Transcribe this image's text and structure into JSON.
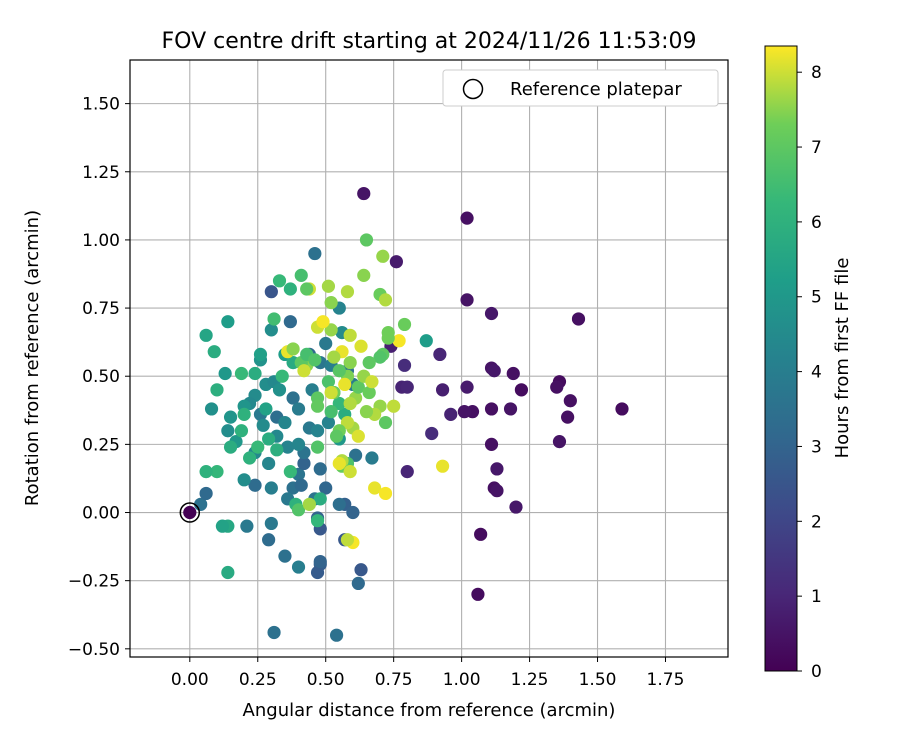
{
  "chart_data": {
    "type": "scatter",
    "title": "FOV centre drift starting at 2024/11/26 11:53:09",
    "xlabel": "Angular distance from reference (arcmin)",
    "ylabel": "Rotation from reference (arcmin)",
    "xlim": [
      -0.22,
      1.98
    ],
    "ylim": [
      -0.53,
      1.66
    ],
    "xticks": [
      "0.00",
      "0.25",
      "0.50",
      "0.75",
      "1.00",
      "1.25",
      "1.50",
      "1.75"
    ],
    "yticks": [
      "−0.50",
      "−0.25",
      "0.00",
      "0.25",
      "0.50",
      "0.75",
      "1.00",
      "1.25",
      "1.50"
    ],
    "grid": true,
    "legend": {
      "position": "top-right",
      "entries": [
        "Reference platepar"
      ]
    },
    "reference_point": {
      "x": 0.0,
      "y": 0.0
    },
    "colorbar": {
      "label": "Hours from first FF file",
      "colormap": "viridis",
      "range": [
        0,
        8.35
      ],
      "ticks": [
        "0",
        "1",
        "2",
        "3",
        "4",
        "5",
        "6",
        "7",
        "8"
      ]
    },
    "points": [
      [
        0.0,
        0.0,
        0.0
      ],
      [
        0.64,
        1.17,
        0.5
      ],
      [
        1.02,
        1.08,
        0.4
      ],
      [
        0.76,
        0.92,
        0.7
      ],
      [
        1.02,
        0.78,
        0.5
      ],
      [
        1.11,
        0.73,
        0.6
      ],
      [
        1.43,
        0.71,
        0.4
      ],
      [
        0.74,
        0.61,
        0.8
      ],
      [
        0.92,
        0.58,
        1.0
      ],
      [
        0.79,
        0.54,
        1.2
      ],
      [
        1.11,
        0.53,
        0.5
      ],
      [
        1.12,
        0.52,
        0.6
      ],
      [
        1.19,
        0.51,
        0.4
      ],
      [
        1.36,
        0.48,
        0.3
      ],
      [
        1.35,
        0.46,
        0.4
      ],
      [
        1.22,
        0.45,
        0.3
      ],
      [
        1.02,
        0.46,
        0.7
      ],
      [
        0.93,
        0.45,
        0.8
      ],
      [
        0.78,
        0.46,
        0.9
      ],
      [
        0.8,
        0.46,
        1.0
      ],
      [
        1.4,
        0.41,
        0.4
      ],
      [
        1.59,
        0.38,
        0.3
      ],
      [
        1.11,
        0.38,
        0.4
      ],
      [
        1.18,
        0.38,
        0.5
      ],
      [
        1.04,
        0.37,
        0.4
      ],
      [
        1.01,
        0.37,
        0.5
      ],
      [
        0.96,
        0.36,
        0.9
      ],
      [
        1.39,
        0.35,
        0.4
      ],
      [
        0.89,
        0.29,
        1.2
      ],
      [
        1.11,
        0.25,
        0.4
      ],
      [
        1.36,
        0.26,
        0.5
      ],
      [
        1.13,
        0.16,
        0.6
      ],
      [
        0.8,
        0.15,
        1.0
      ],
      [
        1.12,
        0.09,
        0.4
      ],
      [
        1.13,
        0.08,
        0.5
      ],
      [
        1.2,
        0.02,
        0.6
      ],
      [
        1.07,
        -0.08,
        0.3
      ],
      [
        1.06,
        -0.3,
        0.3
      ],
      [
        0.46,
        0.95,
        3.5
      ],
      [
        0.3,
        0.81,
        2.5
      ],
      [
        0.37,
        0.7,
        3.2
      ],
      [
        0.55,
        0.75,
        4.2
      ],
      [
        0.56,
        0.66,
        4.5
      ],
      [
        0.5,
        0.62,
        3.8
      ],
      [
        0.44,
        0.58,
        3.2
      ],
      [
        0.48,
        0.55,
        3.7
      ],
      [
        0.52,
        0.54,
        4.0
      ],
      [
        0.58,
        0.52,
        3.6
      ],
      [
        0.6,
        0.47,
        3.9
      ],
      [
        0.53,
        0.44,
        4.2
      ],
      [
        0.45,
        0.45,
        4.0
      ],
      [
        0.38,
        0.42,
        3.5
      ],
      [
        0.4,
        0.38,
        3.9
      ],
      [
        0.32,
        0.35,
        3.4
      ],
      [
        0.26,
        0.36,
        3.8
      ],
      [
        0.44,
        0.31,
        3.8
      ],
      [
        0.47,
        0.3,
        4.2
      ],
      [
        0.51,
        0.33,
        4.2
      ],
      [
        0.61,
        0.21,
        3.5
      ],
      [
        0.67,
        0.2,
        3.9
      ],
      [
        0.48,
        0.16,
        3.3
      ],
      [
        0.4,
        0.14,
        3.6
      ],
      [
        0.42,
        0.18,
        3.0
      ],
      [
        0.5,
        0.09,
        3.1
      ],
      [
        0.46,
        0.05,
        3.6
      ],
      [
        0.38,
        0.09,
        3.5
      ],
      [
        0.3,
        0.09,
        4.0
      ],
      [
        0.24,
        0.1,
        3.3
      ],
      [
        0.2,
        0.12,
        4.6
      ],
      [
        0.36,
        0.05,
        3.8
      ],
      [
        0.41,
        0.1,
        3.2
      ],
      [
        0.57,
        0.03,
        2.9
      ],
      [
        0.55,
        0.03,
        3.4
      ],
      [
        0.6,
        0.0,
        3.0
      ],
      [
        0.48,
        -0.06,
        2.6
      ],
      [
        0.47,
        -0.02,
        3.0
      ],
      [
        0.57,
        -0.1,
        2.6
      ],
      [
        0.63,
        -0.21,
        2.6
      ],
      [
        0.62,
        -0.26,
        3.2
      ],
      [
        0.48,
        -0.19,
        2.8
      ],
      [
        0.47,
        -0.22,
        2.7
      ],
      [
        0.48,
        -0.18,
        3.0
      ],
      [
        0.35,
        -0.16,
        3.5
      ],
      [
        0.3,
        -0.04,
        3.8
      ],
      [
        0.29,
        -0.1,
        3.3
      ],
      [
        0.4,
        -0.2,
        4.0
      ],
      [
        0.31,
        -0.44,
        3.5
      ],
      [
        0.54,
        -0.45,
        3.5
      ],
      [
        0.21,
        -0.05,
        3.8
      ],
      [
        0.04,
        0.03,
        3.5
      ],
      [
        0.06,
        0.07,
        3.2
      ],
      [
        0.29,
        0.18,
        4.3
      ],
      [
        0.24,
        0.22,
        4.4
      ],
      [
        0.36,
        0.24,
        4.2
      ],
      [
        0.42,
        0.22,
        3.6
      ],
      [
        0.4,
        0.25,
        4.3
      ],
      [
        0.32,
        0.28,
        4.4
      ],
      [
        0.27,
        0.32,
        4.5
      ],
      [
        0.35,
        0.33,
        4.3
      ],
      [
        0.24,
        0.43,
        4.5
      ],
      [
        0.28,
        0.47,
        4.6
      ],
      [
        0.31,
        0.48,
        4.4
      ],
      [
        0.26,
        0.56,
        4.8
      ],
      [
        0.3,
        0.67,
        4.6
      ],
      [
        0.33,
        0.45,
        4.7
      ],
      [
        0.22,
        0.4,
        4.4
      ],
      [
        0.2,
        0.39,
        4.9
      ],
      [
        0.15,
        0.35,
        4.9
      ],
      [
        0.14,
        0.3,
        4.6
      ],
      [
        0.17,
        0.26,
        5.0
      ],
      [
        0.08,
        0.38,
        4.7
      ],
      [
        0.13,
        0.51,
        5.0
      ],
      [
        0.14,
        0.7,
        5.2
      ],
      [
        0.06,
        0.65,
        5.5
      ],
      [
        0.09,
        0.59,
        5.8
      ],
      [
        0.1,
        0.45,
        5.9
      ],
      [
        0.19,
        0.51,
        6.3
      ],
      [
        0.2,
        0.36,
        6.0
      ],
      [
        0.24,
        0.51,
        5.8
      ],
      [
        0.26,
        0.58,
        5.3
      ],
      [
        0.31,
        0.71,
        6.5
      ],
      [
        0.33,
        0.85,
        6.3
      ],
      [
        0.37,
        0.82,
        6.0
      ],
      [
        0.41,
        0.87,
        6.6
      ],
      [
        0.35,
        0.58,
        5.2
      ],
      [
        0.38,
        0.55,
        5.7
      ],
      [
        0.34,
        0.5,
        6.3
      ],
      [
        0.28,
        0.38,
        5.4
      ],
      [
        0.29,
        0.27,
        5.8
      ],
      [
        0.32,
        0.23,
        5.9
      ],
      [
        0.25,
        0.24,
        6.3
      ],
      [
        0.22,
        0.2,
        6.0
      ],
      [
        0.15,
        0.24,
        5.8
      ],
      [
        0.19,
        0.3,
        6.0
      ],
      [
        0.14,
        -0.05,
        5.6
      ],
      [
        0.14,
        -0.22,
        5.7
      ],
      [
        0.12,
        -0.05,
        5.4
      ],
      [
        0.1,
        0.15,
        6.2
      ],
      [
        0.06,
        0.15,
        6.0
      ],
      [
        0.37,
        0.15,
        6.3
      ],
      [
        0.39,
        0.03,
        6.0
      ],
      [
        0.47,
        -0.03,
        6.2
      ],
      [
        0.48,
        0.05,
        5.8
      ],
      [
        0.4,
        0.01,
        6.8
      ],
      [
        0.58,
        0.18,
        6.7
      ],
      [
        0.56,
        0.17,
        7.2
      ],
      [
        0.55,
        0.27,
        5.0
      ],
      [
        0.57,
        0.36,
        5.8
      ],
      [
        0.55,
        0.4,
        6.2
      ],
      [
        0.52,
        0.37,
        6.6
      ],
      [
        0.47,
        0.24,
        6.8
      ],
      [
        0.47,
        0.42,
        7.0
      ],
      [
        0.51,
        0.48,
        6.7
      ],
      [
        0.53,
        0.44,
        7.3
      ],
      [
        0.58,
        0.5,
        7.4
      ],
      [
        0.61,
        0.42,
        7.6
      ],
      [
        0.62,
        0.46,
        7.0
      ],
      [
        0.66,
        0.44,
        7.2
      ],
      [
        0.7,
        0.39,
        7.6
      ],
      [
        0.72,
        0.33,
        7.0
      ],
      [
        0.68,
        0.36,
        7.8
      ],
      [
        0.75,
        0.39,
        7.9
      ],
      [
        0.71,
        0.58,
        7.0
      ],
      [
        0.73,
        0.66,
        7.3
      ],
      [
        0.79,
        0.69,
        7.2
      ],
      [
        0.87,
        0.63,
        5.2
      ],
      [
        0.7,
        0.57,
        6.8
      ],
      [
        0.66,
        0.55,
        7.0
      ],
      [
        0.64,
        0.5,
        7.6
      ],
      [
        0.67,
        0.48,
        8.0
      ],
      [
        0.63,
        0.61,
        8.1
      ],
      [
        0.59,
        0.55,
        7.5
      ],
      [
        0.56,
        0.59,
        8.2
      ],
      [
        0.59,
        0.65,
        7.9
      ],
      [
        0.52,
        0.67,
        7.6
      ],
      [
        0.47,
        0.68,
        8.0
      ],
      [
        0.49,
        0.7,
        8.3
      ],
      [
        0.53,
        0.57,
        7.7
      ],
      [
        0.43,
        0.54,
        7.5
      ],
      [
        0.41,
        0.55,
        7.0
      ],
      [
        0.43,
        0.58,
        6.6
      ],
      [
        0.46,
        0.56,
        6.8
      ],
      [
        0.42,
        0.52,
        8.0
      ],
      [
        0.36,
        0.59,
        8.2
      ],
      [
        0.38,
        0.6,
        7.5
      ],
      [
        0.52,
        0.77,
        7.5
      ],
      [
        0.51,
        0.83,
        7.7
      ],
      [
        0.58,
        0.81,
        7.8
      ],
      [
        0.64,
        0.87,
        7.5
      ],
      [
        0.65,
        1.0,
        7.0
      ],
      [
        0.71,
        0.94,
        7.6
      ],
      [
        0.7,
        0.8,
        7.2
      ],
      [
        0.72,
        0.78,
        7.8
      ],
      [
        0.44,
        0.82,
        8.0
      ],
      [
        0.43,
        0.82,
        7.0
      ],
      [
        0.77,
        0.63,
        8.3
      ],
      [
        0.73,
        0.64,
        7.3
      ],
      [
        0.65,
        0.37,
        7.5
      ],
      [
        0.6,
        0.31,
        7.7
      ],
      [
        0.58,
        0.33,
        7.9
      ],
      [
        0.57,
        0.47,
        8.2
      ],
      [
        0.59,
        0.4,
        7.8
      ],
      [
        0.52,
        0.44,
        8.0
      ],
      [
        0.62,
        0.28,
        8.1
      ],
      [
        0.55,
        0.3,
        7.3
      ],
      [
        0.56,
        0.19,
        7.8
      ],
      [
        0.55,
        0.18,
        8.2
      ],
      [
        0.59,
        0.15,
        8.0
      ],
      [
        0.68,
        0.09,
        8.2
      ],
      [
        0.72,
        0.07,
        8.3
      ],
      [
        0.93,
        0.17,
        8.2
      ],
      [
        0.6,
        -0.11,
        8.3
      ],
      [
        0.58,
        -0.1,
        7.9
      ],
      [
        0.44,
        0.03,
        7.7
      ],
      [
        0.47,
        0.39,
        7.1
      ],
      [
        0.54,
        0.28,
        7.0
      ],
      [
        0.55,
        0.52,
        6.9
      ]
    ]
  }
}
